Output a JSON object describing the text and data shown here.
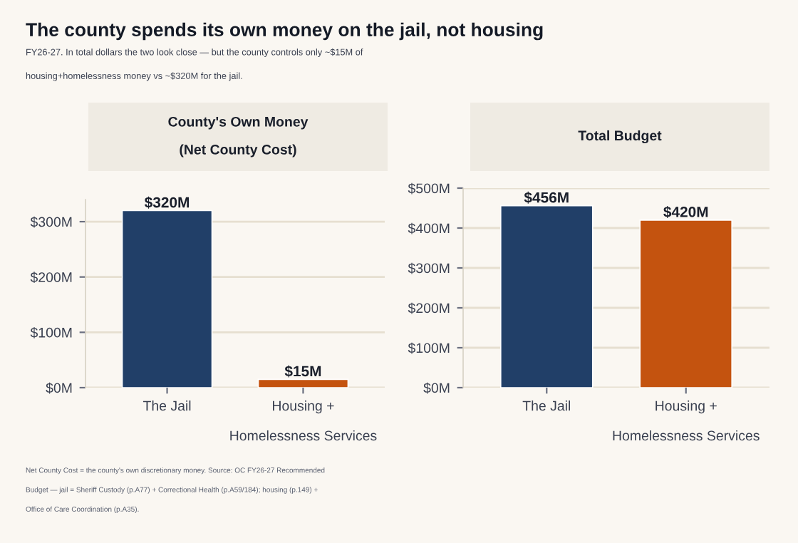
{
  "chart_data": [
    {
      "type": "bar",
      "title": "County's Own Money\n\n(Net County Cost)",
      "categories": [
        "The Jail",
        "Housing +\n\nHomelessness Services"
      ],
      "values": [
        320,
        15
      ],
      "colors": [
        "#213f68",
        "#c4530f"
      ],
      "value_labels": [
        "$320M",
        "$15M"
      ],
      "ylim": [
        0,
        340
      ],
      "yticks": [
        {
          "value": 0,
          "label": "$0M"
        },
        {
          "value": 100,
          "label": "$100M"
        },
        {
          "value": 200,
          "label": "$200M"
        },
        {
          "value": 300,
          "label": "$300M"
        }
      ],
      "grid": "y",
      "annotations": [
        "The county spends its own money on the jail, not housing",
        "FY26-27. In total dollars the two look close — but the county controls only ~$15M of\n\nhousing+homelessness money vs ~$320M for the jail.",
        "Net County Cost = the county's own discretionary money. Source: OC FY26-27 Recommended\n\nBudget — jail = Sheriff Custody (p.A77) + Correctional Health (p.A59/184); housing (p.149) +\n\nOffice of Care Coordination (p.A35)."
      ]
    },
    {
      "type": "bar",
      "title": "Total Budget",
      "categories": [
        "The Jail",
        "Housing +\n\nHomelessness Services"
      ],
      "values": [
        456,
        420
      ],
      "colors": [
        "#213f68",
        "#c4530f"
      ],
      "value_labels": [
        "$456M",
        "$420M"
      ],
      "ylim": [
        0,
        500
      ],
      "yticks": [
        {
          "value": 0,
          "label": "$0M"
        },
        {
          "value": 100,
          "label": "$100M"
        },
        {
          "value": 200,
          "label": "$200M"
        },
        {
          "value": 300,
          "label": "$300M"
        },
        {
          "value": 400,
          "label": "$400M"
        },
        {
          "value": 500,
          "label": "$500M"
        }
      ],
      "grid": "y"
    }
  ]
}
